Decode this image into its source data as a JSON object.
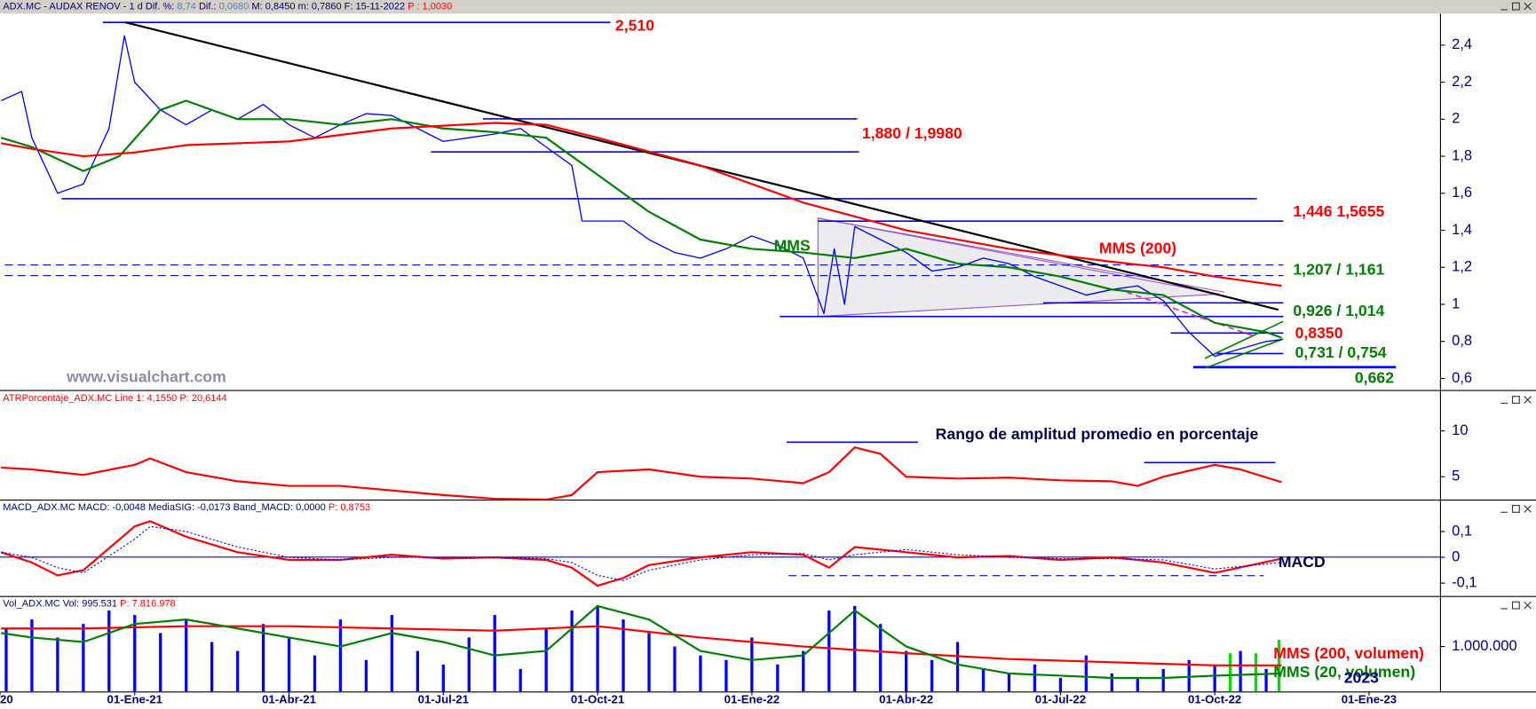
{
  "chart_data": [
    {
      "type": "line",
      "header": [
        {
          "text": "ADX.MC - AUDAX RENOV -  1 d  Dif. %: ",
          "color": "#000080"
        },
        {
          "text": "8,74",
          "color": "#4a86c5"
        },
        {
          "text": "  Dif.: ",
          "color": "#000080"
        },
        {
          "text": "0,0680",
          "color": "#4a86c5"
        },
        {
          "text": "  M: 0,8450  m: 0,7860  F: 15-11-2022  ",
          "color": "#000080"
        },
        {
          "text": "P : 1,0030",
          "color": "#ff0000"
        }
      ],
      "xlim": [
        0.38,
        28.38
      ],
      "ylim": [
        0.54,
        2.57
      ],
      "yticks": [
        {
          "value": 0.6,
          "label": "0,6"
        },
        {
          "value": 0.8,
          "label": "0,8"
        },
        1,
        {
          "value": 1.2,
          "label": "1,2"
        },
        {
          "value": 1.4,
          "label": "1,4"
        },
        {
          "value": 1.6,
          "label": "1,6"
        },
        {
          "value": 1.8,
          "label": "1,8"
        },
        2,
        {
          "value": 2.2,
          "label": "2,2"
        },
        {
          "value": 2.4,
          "label": "2,4"
        }
      ],
      "series": [
        {
          "style": "line",
          "color": "#0000ff",
          "width": 1.2,
          "x": [
            0.4,
            0.8,
            1,
            1.5,
            2,
            2.5,
            2.8,
            3,
            3.5,
            4,
            4.5,
            5,
            5.5,
            6,
            6.5,
            7,
            7.5,
            8,
            8.5,
            9,
            9.5,
            10,
            10.5,
            11,
            11.5,
            11.7,
            12,
            12.5,
            13,
            13.5,
            14,
            14.5,
            15,
            15.5,
            16,
            16.4,
            16.6,
            16.8,
            17,
            17.5,
            18,
            18.5,
            19,
            19.5,
            20,
            20.5,
            21,
            21.5,
            22,
            22.5,
            23,
            23.5,
            24,
            24.5,
            25,
            25.3
          ],
          "values": [
            2.1,
            2.15,
            1.9,
            1.6,
            1.65,
            1.95,
            2.45,
            2.2,
            2.05,
            1.97,
            2.05,
            2.0,
            2.08,
            1.97,
            1.9,
            1.97,
            2.03,
            2.02,
            1.95,
            1.88,
            1.9,
            1.92,
            1.95,
            1.85,
            1.75,
            1.45,
            1.45,
            1.45,
            1.35,
            1.28,
            1.25,
            1.3,
            1.37,
            1.32,
            1.25,
            0.95,
            1.3,
            1.0,
            1.42,
            1.35,
            1.28,
            1.18,
            1.2,
            1.25,
            1.22,
            1.15,
            1.1,
            1.05,
            1.08,
            1.1,
            1.02,
            0.85,
            0.72,
            0.76,
            0.8,
            0.81
          ]
        },
        {
          "style": "line",
          "color": "#008000",
          "width": 2,
          "x": [
            0.4,
            1,
            2,
            2.7,
            3.5,
            4,
            5,
            6,
            7,
            8,
            9,
            10,
            11,
            12,
            13,
            14,
            15,
            16,
            17,
            18,
            19,
            20,
            21,
            22,
            23,
            24,
            25,
            25.3
          ],
          "values": [
            1.9,
            1.85,
            1.72,
            1.8,
            2.05,
            2.1,
            2.0,
            2.0,
            1.97,
            2.0,
            1.95,
            1.93,
            1.9,
            1.7,
            1.5,
            1.35,
            1.3,
            1.28,
            1.25,
            1.3,
            1.22,
            1.2,
            1.15,
            1.08,
            1.05,
            0.9,
            0.85,
            0.82
          ]
        },
        {
          "style": "line",
          "color": "#ff0000",
          "width": 2,
          "x": [
            0.4,
            1,
            2,
            3,
            4,
            6,
            8,
            10,
            11,
            12,
            14,
            16,
            18,
            20,
            22,
            23,
            24,
            25.3
          ],
          "values": [
            1.87,
            1.84,
            1.8,
            1.82,
            1.86,
            1.88,
            1.95,
            1.98,
            1.97,
            1.9,
            1.75,
            1.55,
            1.4,
            1.3,
            1.23,
            1.2,
            1.15,
            1.1
          ]
        }
      ],
      "annotations": [
        {
          "text": "2,510",
          "color": "#ff0000"
        },
        {
          "text": "1,880 / 1,9980",
          "color": "#ff0000"
        },
        {
          "text": "1,446 1,5655",
          "color": "#ff0000"
        },
        {
          "text": "1,207 / 1,161",
          "color": "#008000"
        },
        {
          "text": "0,926 / 1,014",
          "color": "#008000"
        },
        {
          "text": "0,8350",
          "color": "#ff0000"
        },
        {
          "text": "0,731 / 0,754",
          "color": "#008000"
        },
        {
          "text": "0,662",
          "color": "#008000"
        },
        {
          "text": "MMS",
          "color": "#008000"
        },
        {
          "text": "MMS (200)",
          "color": "#ff0000"
        },
        {
          "text": "www.visualchart.com",
          "color": "#8c8ca8"
        }
      ]
    },
    {
      "type": "line",
      "header": [
        {
          "text": "ATRPorcentaje_ADX.MC  Line 1: 4,1550  P: 20,6144",
          "color": "#ff0000"
        }
      ],
      "xlim": [
        0.38,
        28.38
      ],
      "ylim": [
        2.5,
        14.3
      ],
      "yticks": [
        5,
        10
      ],
      "series": [
        {
          "style": "line",
          "color": "#ff0000",
          "width": 2,
          "x": [
            0.4,
            1,
            2,
            3,
            3.3,
            4,
            5,
            6,
            7,
            8,
            9,
            10,
            11,
            11.5,
            12,
            13,
            14,
            15,
            16,
            16.5,
            17,
            17.5,
            18,
            19,
            20,
            21,
            22,
            22.5,
            23,
            24,
            24.5,
            25.3
          ],
          "values": [
            6,
            5.8,
            5.2,
            6.3,
            7,
            5.5,
            4.5,
            4,
            4,
            3.5,
            3,
            2.6,
            2.5,
            3,
            5.5,
            5.8,
            5,
            4.8,
            4.3,
            5.5,
            8.2,
            7.5,
            5,
            4.8,
            4.9,
            4.6,
            4.5,
            4,
            5,
            6.3,
            5.8,
            4.4
          ]
        }
      ],
      "annotations": [
        {
          "text": "Rango de amplitud promedio en porcentaje",
          "color": "#000050"
        }
      ]
    },
    {
      "type": "line",
      "header": [
        {
          "text": "MACD_ADX.MC  MACD: -0,0048  MediaSIG: -0,0173  Band_MACD: 0,0000  ",
          "color": "#000080"
        },
        {
          "text": "P: 0,8753",
          "color": "#ff0000"
        }
      ],
      "xlim": [
        0.38,
        28.38
      ],
      "ylim": [
        -0.15,
        0.22
      ],
      "yticks": [
        {
          "value": -0.1,
          "label": "-0,1"
        },
        0,
        {
          "value": 0.1,
          "label": "0,1"
        }
      ],
      "series": [
        {
          "style": "line",
          "color": "#ff0000",
          "width": 2,
          "x": [
            0.4,
            1,
            1.5,
            2,
            3,
            3.3,
            4,
            5,
            6,
            7,
            8,
            9,
            10,
            11,
            11.5,
            12,
            12.5,
            13,
            14,
            15,
            16,
            16.5,
            17,
            18,
            19,
            20,
            21,
            22,
            23,
            24,
            25.3
          ],
          "values": [
            0.02,
            -0.02,
            -0.07,
            -0.05,
            0.12,
            0.14,
            0.08,
            0.02,
            -0.01,
            -0.01,
            0.01,
            -0.005,
            0,
            -0.01,
            -0.04,
            -0.11,
            -0.08,
            -0.03,
            0,
            0.02,
            0.01,
            -0.04,
            0.04,
            0.02,
            0,
            0.005,
            -0.01,
            0,
            -0.02,
            -0.06,
            -0.005
          ]
        },
        {
          "style": "line",
          "color": "#0000ff",
          "width": 1,
          "dash": true,
          "x": [
            0.4,
            1,
            1.5,
            2,
            3,
            3.3,
            4,
            5,
            6,
            7,
            8,
            9,
            10,
            11,
            11.5,
            12,
            12.5,
            13,
            14,
            15,
            16,
            16.5,
            17,
            18,
            19,
            20,
            21,
            22,
            23,
            24,
            25.3
          ],
          "values": [
            0.02,
            0,
            -0.04,
            -0.06,
            0.07,
            0.12,
            0.1,
            0.04,
            0,
            -0.01,
            0,
            0,
            0,
            -0.005,
            -0.02,
            -0.07,
            -0.09,
            -0.05,
            -0.01,
            0.01,
            0.015,
            -0.01,
            0.01,
            0.03,
            0.01,
            0,
            -0.005,
            -0.005,
            -0.01,
            -0.045,
            -0.02
          ]
        }
      ],
      "annotations": [
        {
          "text": "MACD",
          "color": "#000050"
        }
      ]
    },
    {
      "type": "bar",
      "header": [
        {
          "text": "Vol_ADX.MC  Vol: 995.531  ",
          "color": "#000080"
        },
        {
          "text": "P: 7.816.978",
          "color": "#ff0000"
        }
      ],
      "xlim": [
        0.38,
        28.38
      ],
      "ylim": [
        0,
        2100000
      ],
      "yticks": [
        {
          "value": 1000000,
          "label": "1.000.000"
        }
      ],
      "xticks": [
        {
          "value": 0.38,
          "label": "20"
        },
        {
          "value": 3,
          "label": "01-Ene-21"
        },
        {
          "value": 6,
          "label": "01-Abr-21"
        },
        {
          "value": 9,
          "label": "01-Jul-21"
        },
        {
          "value": 12,
          "label": "01-Oct-21"
        },
        {
          "value": 15,
          "label": "01-Ene-22"
        },
        {
          "value": 18,
          "label": "01-Abr-22"
        },
        {
          "value": 21,
          "label": "01-Jul-22"
        },
        {
          "value": 24,
          "label": "01-Oct-22"
        },
        {
          "value": 27,
          "label": "01-Ene-23"
        }
      ],
      "series": [
        {
          "style": "bar",
          "color": "#0000ff",
          "x": [
            0.5,
            1,
            1.5,
            2,
            2.5,
            3,
            3.5,
            4,
            4.5,
            5,
            5.5,
            6,
            6.5,
            7,
            7.5,
            8,
            8.5,
            9,
            9.5,
            10,
            10.5,
            11,
            11.5,
            12,
            12.5,
            13,
            13.5,
            14,
            14.5,
            15,
            15.5,
            16,
            16.5,
            17,
            17.5,
            18,
            18.5,
            19,
            19.5,
            20,
            20.5,
            21,
            21.5,
            22,
            22.5,
            23,
            23.5,
            24,
            24.5,
            25
          ],
          "values": [
            1400000,
            1600000,
            1200000,
            1500000,
            1800000,
            1700000,
            1300000,
            1600000,
            1100000,
            900000,
            1500000,
            1200000,
            800000,
            1600000,
            700000,
            1700000,
            900000,
            600000,
            1200000,
            1700000,
            500000,
            1400000,
            1800000,
            1900000,
            1600000,
            1300000,
            1000000,
            800000,
            700000,
            1200000,
            600000,
            900000,
            1800000,
            1900000,
            1500000,
            900000,
            700000,
            1100000,
            500000,
            400000,
            600000,
            300000,
            800000,
            400000,
            300000,
            500000,
            700000,
            600000,
            900000,
            500000
          ]
        },
        {
          "style": "bar",
          "color": "#00dd00",
          "x": [
            24.3,
            24.8,
            25.25
          ],
          "values": [
            850000,
            850000,
            1150000
          ]
        },
        {
          "style": "line",
          "color": "#ff0000",
          "width": 2,
          "x": [
            0.4,
            2,
            4,
            6,
            8,
            10,
            12,
            14,
            16,
            18,
            20,
            22,
            24,
            25.3
          ],
          "values": [
            1400000,
            1400000,
            1450000,
            1450000,
            1400000,
            1350000,
            1450000,
            1200000,
            1000000,
            850000,
            720000,
            650000,
            580000,
            580000
          ]
        },
        {
          "style": "line",
          "color": "#008000",
          "width": 2,
          "x": [
            0.4,
            1,
            2,
            3,
            4,
            5,
            6,
            7,
            8,
            9,
            10,
            11,
            12,
            13,
            14,
            15,
            16,
            17,
            18,
            19,
            20,
            21,
            22,
            23,
            24,
            25.3
          ],
          "values": [
            1300000,
            1200000,
            1100000,
            1500000,
            1600000,
            1400000,
            1200000,
            1000000,
            1300000,
            1100000,
            800000,
            900000,
            1900000,
            1600000,
            900000,
            700000,
            800000,
            1800000,
            1000000,
            600000,
            400000,
            350000,
            300000,
            300000,
            350000,
            400000
          ]
        }
      ],
      "annotations": [
        {
          "text": "MMS (200, volumen)",
          "color": "#ff0000"
        },
        {
          "text": "MMS (20, volumen)",
          "color": "#008000"
        },
        {
          "text": "2023",
          "color": "#000080"
        }
      ]
    }
  ]
}
